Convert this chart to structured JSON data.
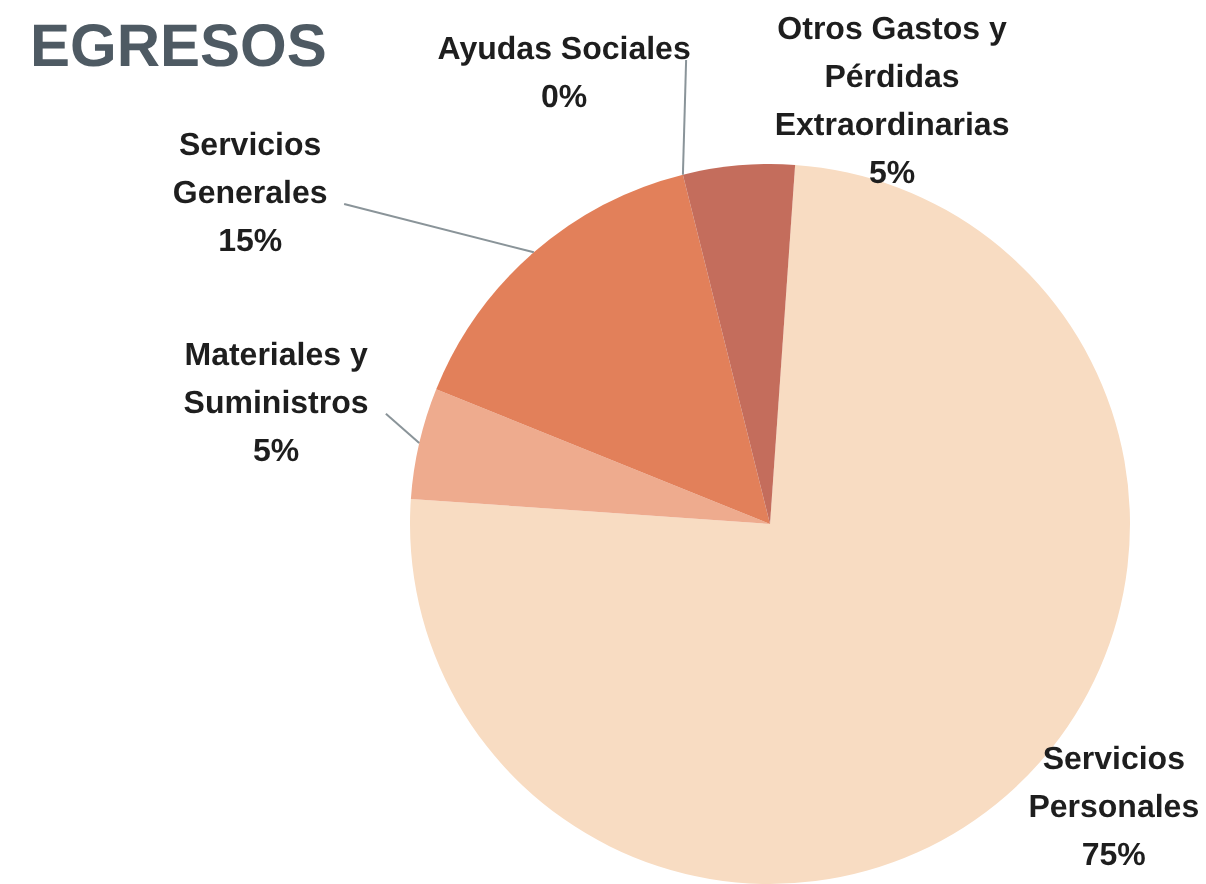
{
  "chart_data": {
    "type": "pie",
    "title": "EGRESOS",
    "categories": [
      "Servicios Personales",
      "Materiales y Suministros",
      "Servicios Generales",
      "Ayudas Sociales",
      "Otros Gastos y Pérdidas Extraordinarias"
    ],
    "values": [
      75,
      5,
      15,
      0,
      5
    ],
    "value_labels": [
      "75%",
      "5%",
      "15%",
      "0%",
      "5%"
    ],
    "colors": [
      "#f8dcc2",
      "#eeab8e",
      "#e2805a",
      "#d46a45",
      "#c46d5c"
    ]
  }
}
